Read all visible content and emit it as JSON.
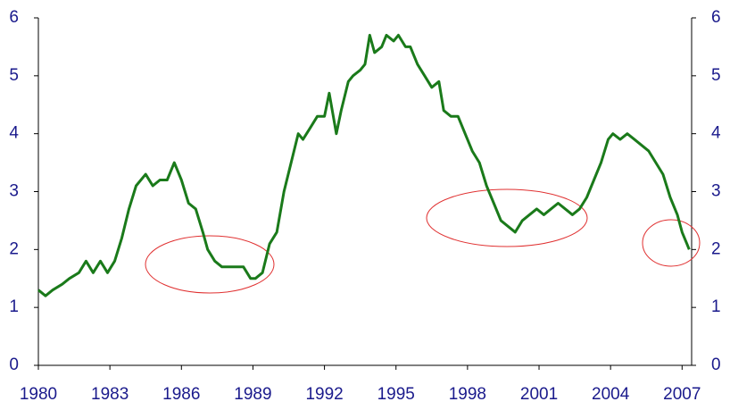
{
  "chart_data": {
    "type": "line",
    "x": [
      1980.0,
      1980.3,
      1980.6,
      1981.0,
      1981.3,
      1981.7,
      1982.0,
      1982.3,
      1982.6,
      1982.9,
      1983.2,
      1983.5,
      1983.8,
      1984.1,
      1984.5,
      1984.8,
      1985.1,
      1985.4,
      1985.7,
      1986.0,
      1986.3,
      1986.6,
      1986.9,
      1987.1,
      1987.4,
      1987.7,
      1988.0,
      1988.3,
      1988.6,
      1988.9,
      1989.1,
      1989.4,
      1989.7,
      1990.0,
      1990.3,
      1990.6,
      1990.9,
      1991.1,
      1991.4,
      1991.7,
      1992.0,
      1992.2,
      1992.5,
      1992.7,
      1993.0,
      1993.2,
      1993.5,
      1993.7,
      1993.9,
      1994.1,
      1994.4,
      1994.6,
      1994.9,
      1995.1,
      1995.4,
      1995.6,
      1995.9,
      1996.2,
      1996.5,
      1996.8,
      1997.0,
      1997.3,
      1997.6,
      1997.9,
      1998.2,
      1998.5,
      1998.8,
      1999.1,
      1999.4,
      1999.7,
      2000.0,
      2000.3,
      2000.6,
      2000.9,
      2001.2,
      2001.5,
      2001.8,
      2002.1,
      2002.4,
      2002.7,
      2003.0,
      2003.3,
      2003.6,
      2003.9,
      2004.1,
      2004.4,
      2004.7,
      2005.0,
      2005.3,
      2005.6,
      2005.9,
      2006.2,
      2006.5,
      2006.8,
      2007.0,
      2007.2,
      2007.3
    ],
    "values": [
      1.3,
      1.2,
      1.3,
      1.4,
      1.5,
      1.6,
      1.8,
      1.6,
      1.8,
      1.6,
      1.8,
      2.2,
      2.7,
      3.1,
      3.3,
      3.1,
      3.2,
      3.2,
      3.5,
      3.2,
      2.8,
      2.7,
      2.3,
      2.0,
      1.8,
      1.7,
      1.7,
      1.7,
      1.7,
      1.5,
      1.5,
      1.6,
      2.1,
      2.3,
      3.0,
      3.5,
      4.0,
      3.9,
      4.1,
      4.3,
      4.3,
      4.7,
      4.0,
      4.4,
      4.9,
      5.0,
      5.1,
      5.2,
      5.7,
      5.4,
      5.5,
      5.7,
      5.6,
      5.7,
      5.5,
      5.5,
      5.2,
      5.0,
      4.8,
      4.9,
      4.4,
      4.3,
      4.3,
      4.0,
      3.7,
      3.5,
      3.1,
      2.8,
      2.5,
      2.4,
      2.3,
      2.5,
      2.6,
      2.7,
      2.6,
      2.7,
      2.8,
      2.7,
      2.6,
      2.7,
      2.9,
      3.2,
      3.5,
      3.9,
      4.0,
      3.9,
      4.0,
      3.9,
      3.8,
      3.7,
      3.5,
      3.3,
      2.9,
      2.6,
      2.3,
      2.1,
      2.0
    ],
    "color": "#1a7a1a",
    "xlim": [
      1980,
      2007.4
    ],
    "xticks": [
      1980,
      1983,
      1986,
      1989,
      1992,
      1995,
      1998,
      2001,
      2004,
      2007
    ],
    "ylim": [
      0,
      6
    ],
    "yticks": [
      0,
      1,
      2,
      3,
      4,
      5,
      6
    ],
    "y2lim": [
      0,
      6
    ],
    "y2ticks": [
      0,
      1,
      2,
      3,
      4,
      5,
      6
    ]
  }
}
